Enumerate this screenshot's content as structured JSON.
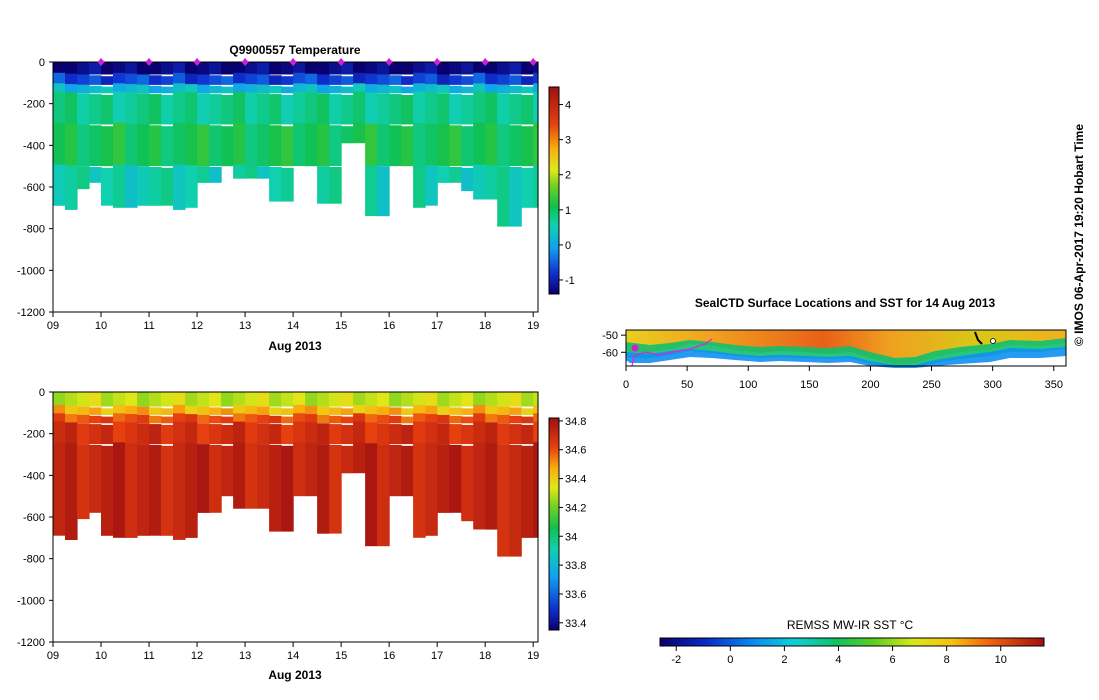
{
  "chart_data": [
    {
      "type": "heatmap",
      "title": "Q9900557  Temperature",
      "xlabel": "Aug 2013",
      "x_tick_labels": [
        "09",
        "10",
        "11",
        "12",
        "13",
        "14",
        "15",
        "16",
        "17",
        "18",
        "19"
      ],
      "x_range": [
        9,
        19.1
      ],
      "ylim": [
        -1200,
        0
      ],
      "y_tick_labels": [
        "0",
        "-200",
        "-400",
        "-600",
        "-800",
        "-1000",
        "-1200"
      ],
      "colorbar": {
        "min": -1.4,
        "max": 4.5,
        "tick_labels": [
          "-1",
          "0",
          "1",
          "2",
          "3",
          "4"
        ],
        "tick_values": [
          -1,
          0,
          1,
          2,
          3,
          4
        ]
      },
      "profile_days": [
        9.0,
        9.25,
        9.5,
        9.75,
        10.0,
        10.25,
        10.5,
        10.75,
        11.0,
        11.25,
        11.5,
        11.75,
        12.0,
        12.25,
        12.5,
        12.75,
        13.0,
        13.25,
        13.5,
        13.75,
        14.0,
        14.25,
        14.5,
        14.75,
        15.0,
        15.25,
        15.5,
        15.75,
        16.0,
        16.25,
        16.5,
        16.75,
        17.0,
        17.25,
        17.5,
        17.75,
        18.0,
        18.25,
        18.5,
        18.75,
        19.0
      ],
      "max_depth": [
        690,
        710,
        610,
        580,
        690,
        700,
        700,
        690,
        690,
        690,
        710,
        700,
        580,
        580,
        500,
        560,
        560,
        560,
        670,
        670,
        500,
        500,
        680,
        680,
        390,
        390,
        740,
        740,
        500,
        500,
        700,
        690,
        580,
        580,
        620,
        660,
        660,
        790,
        790,
        700,
        700
      ],
      "surface_markers": [
        10,
        11,
        12,
        13,
        14,
        15,
        16,
        17,
        18,
        19
      ],
      "layers": [
        {
          "depth": [
            0,
            60
          ],
          "value": -1.3
        },
        {
          "depth": [
            60,
            110
          ],
          "value": -0.7
        },
        {
          "depth": [
            110,
            150
          ],
          "value": 0.2
        },
        {
          "depth": [
            150,
            300
          ],
          "value": 0.75
        },
        {
          "depth": [
            300,
            500
          ],
          "value": 1.05
        },
        {
          "depth": [
            500,
            800
          ],
          "value": 0.55
        }
      ]
    },
    {
      "type": "heatmap",
      "title": "",
      "xlabel": "Aug 2013",
      "x_tick_labels": [
        "09",
        "10",
        "11",
        "12",
        "13",
        "14",
        "15",
        "16",
        "17",
        "18",
        "19"
      ],
      "x_range": [
        9,
        19.1
      ],
      "ylim": [
        -1200,
        0
      ],
      "y_tick_labels": [
        "0",
        "-200",
        "-400",
        "-600",
        "-800",
        "-1000",
        "-1200"
      ],
      "colorbar": {
        "min": 33.35,
        "max": 34.82,
        "tick_labels": [
          "33.4",
          "33.6",
          "33.8",
          "34",
          "34.2",
          "34.4",
          "34.6",
          "34.8"
        ],
        "tick_values": [
          33.4,
          33.6,
          33.8,
          34.0,
          34.2,
          34.4,
          34.6,
          34.8
        ]
      },
      "layers": [
        {
          "depth": [
            0,
            70
          ],
          "value": 34.3
        },
        {
          "depth": [
            70,
            110
          ],
          "value": 34.45
        },
        {
          "depth": [
            110,
            150
          ],
          "value": 34.6
        },
        {
          "depth": [
            150,
            250
          ],
          "value": 34.68
        },
        {
          "depth": [
            250,
            800
          ],
          "value": 34.73
        }
      ]
    },
    {
      "type": "heatmap",
      "title": "SealCTD Surface Locations and SST for 14 Aug 2013",
      "x_tick_labels": [
        "0",
        "50",
        "100",
        "150",
        "200",
        "250",
        "300",
        "350"
      ],
      "x_tick_values": [
        0,
        50,
        100,
        150,
        200,
        250,
        300,
        350
      ],
      "xlim": [
        0,
        360
      ],
      "y_tick_labels": [
        "-50",
        "-60"
      ],
      "y_tick_values": [
        -50,
        -60
      ],
      "ylim": [
        -68,
        -47
      ]
    },
    {
      "type": "colorbar",
      "label": "REMSS MW-IR SST °C",
      "tick_labels": [
        "-2",
        "0",
        "2",
        "4",
        "6",
        "8",
        "10"
      ],
      "tick_values": [
        -2,
        0,
        2,
        4,
        6,
        8,
        10
      ],
      "range": [
        -2.6,
        11.6
      ]
    }
  ],
  "credit": "© IMOS 06-Apr-2017 19:20 Hobart Time",
  "colors": {
    "track": "#e020e0",
    "marker": "#d020d0"
  }
}
